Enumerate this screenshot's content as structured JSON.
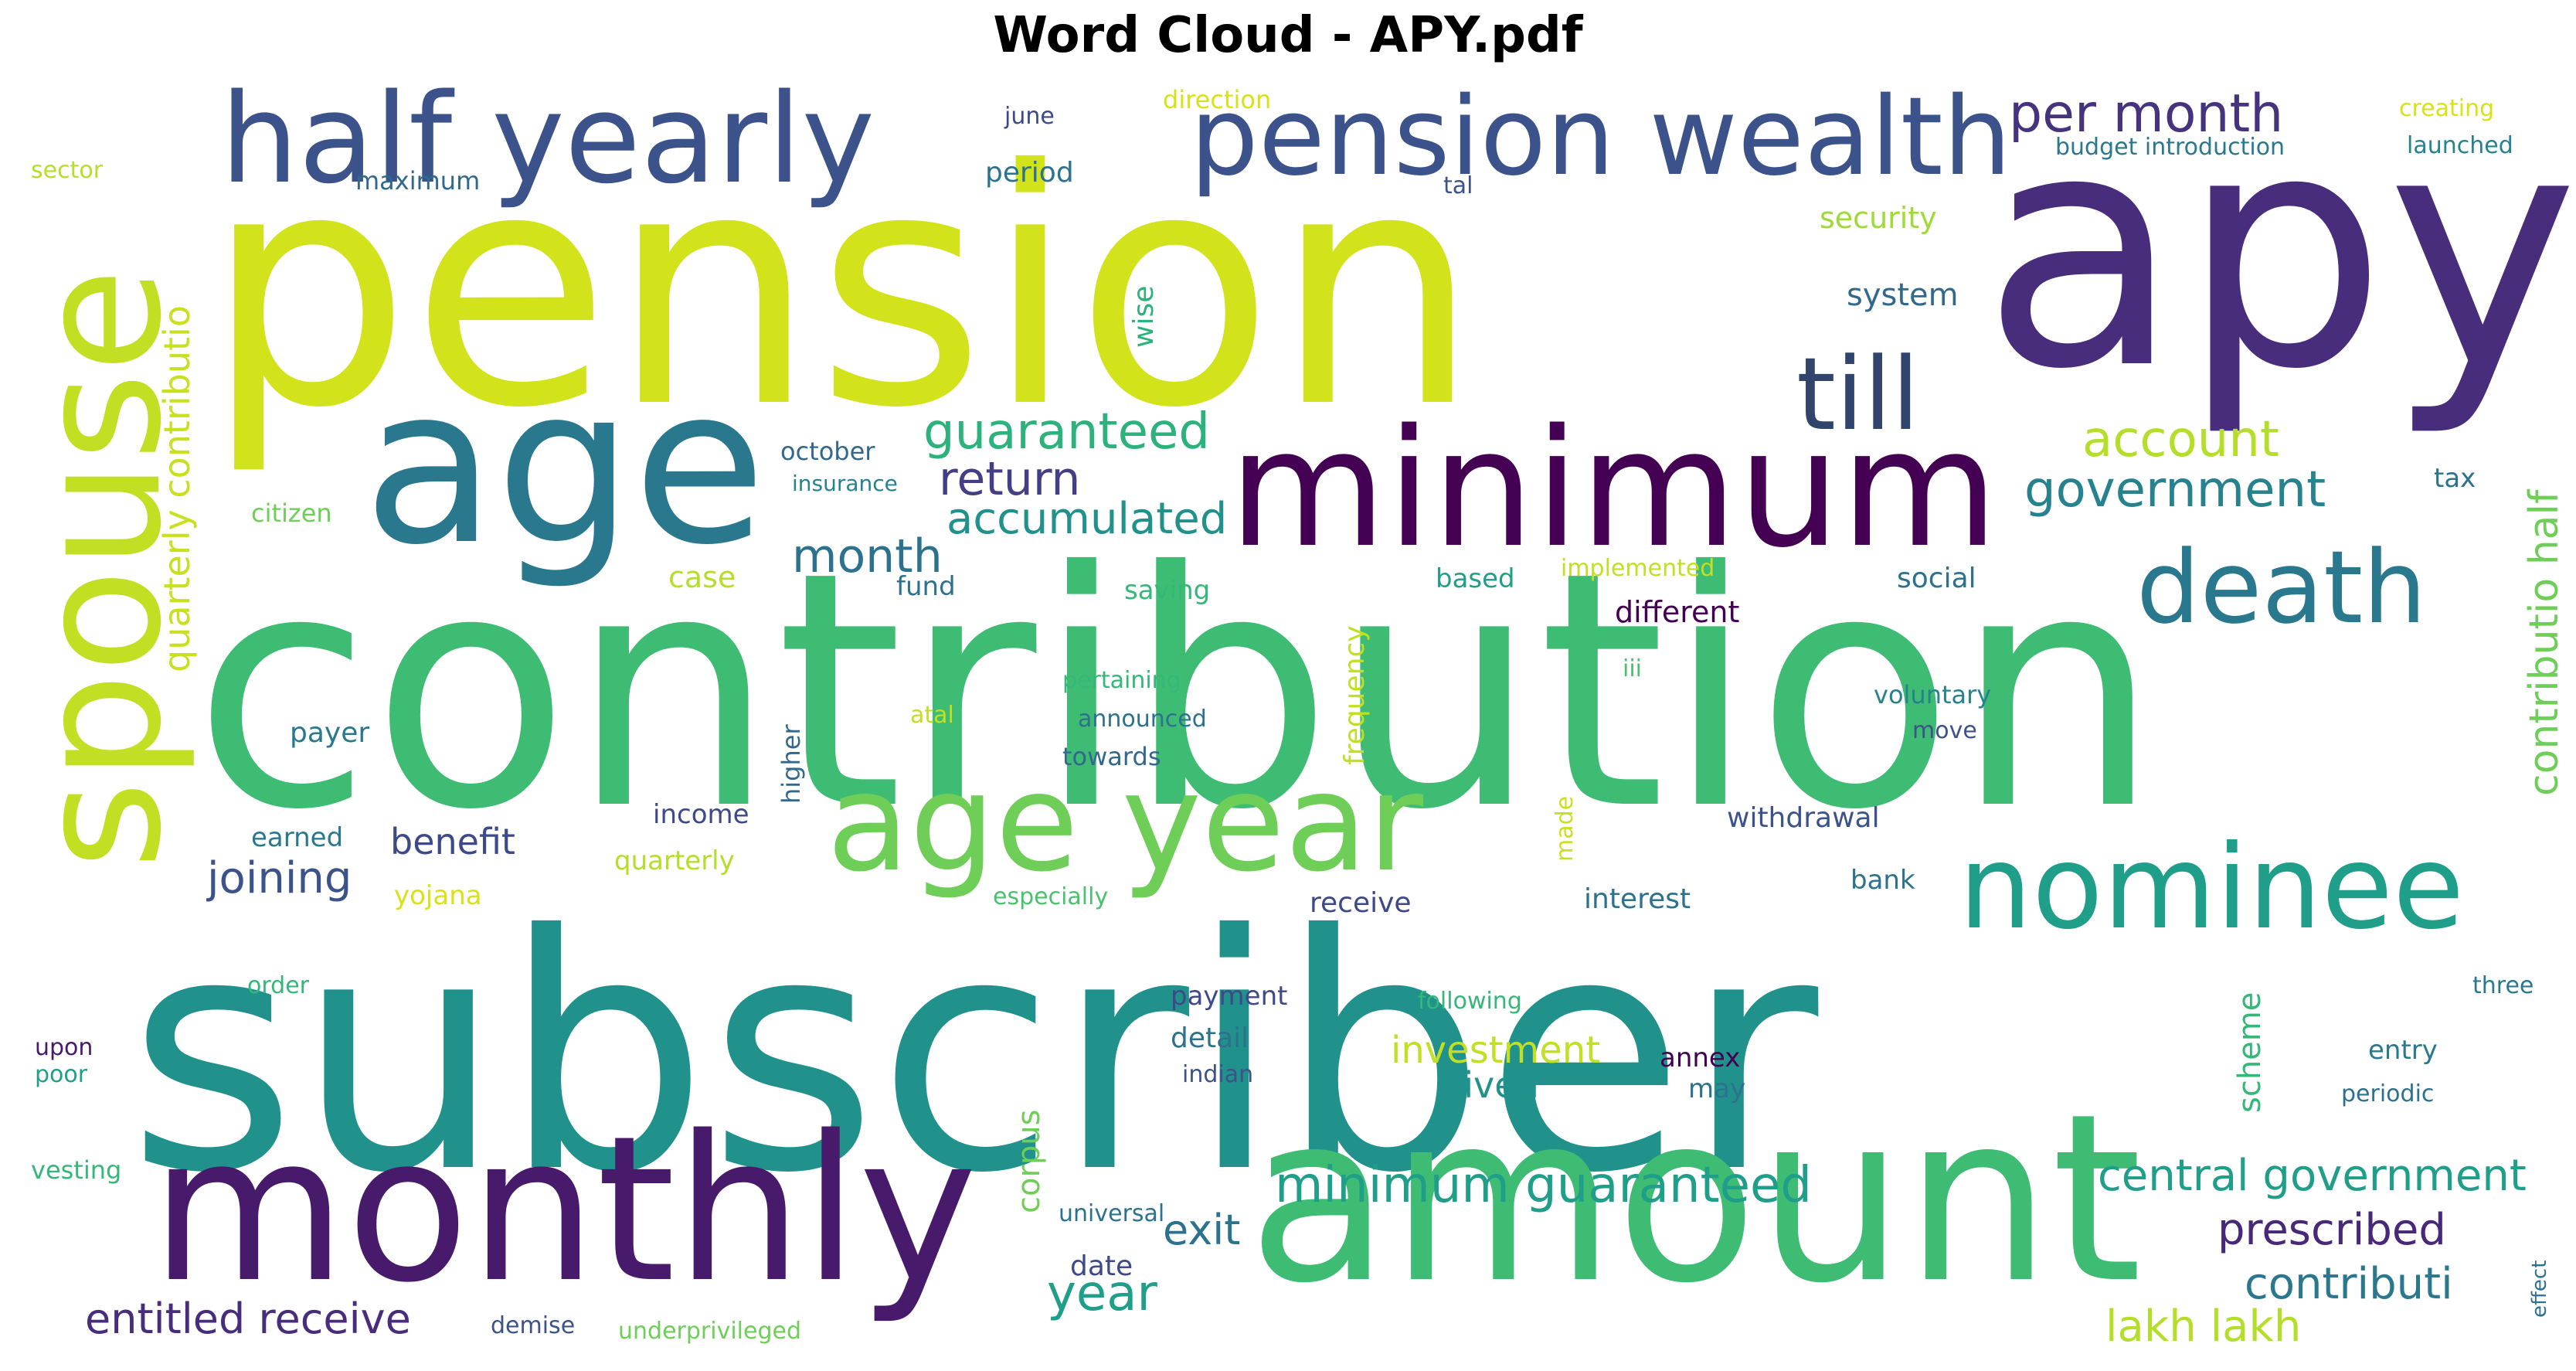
{
  "title": "Word Cloud - APY.pdf",
  "words": [
    {
      "text": "pension",
      "color": "#d2e21b"
    },
    {
      "text": "apy",
      "color": "#472d7b"
    },
    {
      "text": "contribution",
      "color": "#3fbc73"
    },
    {
      "text": "subscriber",
      "color": "#21918c"
    },
    {
      "text": "minimum",
      "color": "#440154"
    },
    {
      "text": "age",
      "color": "#2a788e"
    },
    {
      "text": "amount",
      "color": "#3fbc73"
    },
    {
      "text": "monthly",
      "color": "#481a6c"
    },
    {
      "text": "spouse",
      "color": "#c2df23"
    },
    {
      "text": "half yearly",
      "color": "#3b528b"
    },
    {
      "text": "pension wealth",
      "color": "#3b528b"
    },
    {
      "text": "age year",
      "color": "#6ece58"
    },
    {
      "text": "nominee",
      "color": "#1f9e89"
    },
    {
      "text": "death",
      "color": "#2a788e"
    },
    {
      "text": "till",
      "color": "#31446b"
    },
    {
      "text": "per month",
      "color": "#46337e"
    },
    {
      "text": "guaranteed",
      "color": "#2db27d"
    },
    {
      "text": "account",
      "color": "#b5de2b"
    },
    {
      "text": "government",
      "color": "#26828e"
    },
    {
      "text": "return",
      "color": "#433e85"
    },
    {
      "text": "accumulated",
      "color": "#21918c"
    },
    {
      "text": "month",
      "color": "#2c728e"
    },
    {
      "text": "quarterly contributio",
      "color": "#c8e020"
    },
    {
      "text": "contributio half",
      "color": "#6ece58"
    },
    {
      "text": "minimum guaranteed",
      "color": "#1f9e89"
    },
    {
      "text": "central government",
      "color": "#1f9e89"
    },
    {
      "text": "entitled receive",
      "color": "#472d7b"
    },
    {
      "text": "lakh lakh",
      "color": "#b5de2b"
    },
    {
      "text": "prescribed",
      "color": "#482878"
    },
    {
      "text": "contributi",
      "color": "#2a788e"
    },
    {
      "text": "year",
      "color": "#1f9e89"
    },
    {
      "text": "exit",
      "color": "#2c728e"
    },
    {
      "text": "joining",
      "color": "#3b528b"
    },
    {
      "text": "benefit",
      "color": "#3e4989"
    },
    {
      "text": "investment",
      "color": "#c2df23"
    },
    {
      "text": "given",
      "color": "#21918c"
    },
    {
      "text": "scheme",
      "color": "#35b779"
    },
    {
      "text": "corpus",
      "color": "#6ece58"
    },
    {
      "text": "wise",
      "color": "#2db27d"
    },
    {
      "text": "system",
      "color": "#31688e"
    },
    {
      "text": "security",
      "color": "#a0da39"
    },
    {
      "text": "sector",
      "color": "#b5de2b"
    },
    {
      "text": "maximum",
      "color": "#31688e"
    },
    {
      "text": "period",
      "color": "#2c728e"
    },
    {
      "text": "june",
      "color": "#3e4989"
    },
    {
      "text": "direction",
      "color": "#d8e219"
    },
    {
      "text": "creating",
      "color": "#d8e219"
    },
    {
      "text": "launched",
      "color": "#26828e"
    },
    {
      "text": "budget introduction",
      "color": "#2a788e"
    },
    {
      "text": "tal",
      "color": "#3b528b"
    },
    {
      "text": "october",
      "color": "#31688e"
    },
    {
      "text": "insurance",
      "color": "#26828e"
    },
    {
      "text": "citizen",
      "color": "#6ece58"
    },
    {
      "text": "case",
      "color": "#b5de2b"
    },
    {
      "text": "fund",
      "color": "#2c728e"
    },
    {
      "text": "saving",
      "color": "#35b779"
    },
    {
      "text": "based",
      "color": "#1f9e89"
    },
    {
      "text": "implemented",
      "color": "#c2df23"
    },
    {
      "text": "social",
      "color": "#2c728e"
    },
    {
      "text": "different",
      "color": "#440154"
    },
    {
      "text": "tax",
      "color": "#2c728e"
    },
    {
      "text": "frequency",
      "color": "#c2df23"
    },
    {
      "text": "pertaining",
      "color": "#35b779"
    },
    {
      "text": "iii",
      "color": "#4ac16d"
    },
    {
      "text": "voluntary",
      "color": "#26828e"
    },
    {
      "text": "move",
      "color": "#3b528b"
    },
    {
      "text": "payer",
      "color": "#2a788e"
    },
    {
      "text": "atal",
      "color": "#c2df23"
    },
    {
      "text": "announced",
      "color": "#2c728e"
    },
    {
      "text": "towards",
      "color": "#31688e"
    },
    {
      "text": "higher",
      "color": "#31688e"
    },
    {
      "text": "earned",
      "color": "#2a788e"
    },
    {
      "text": "income",
      "color": "#3e4989"
    },
    {
      "text": "made",
      "color": "#c8e020"
    },
    {
      "text": "withdrawal",
      "color": "#3b528b"
    },
    {
      "text": "quarterly",
      "color": "#b5de2b"
    },
    {
      "text": "yojana",
      "color": "#d8e219"
    },
    {
      "text": "especially",
      "color": "#4ac16d"
    },
    {
      "text": "receive",
      "color": "#3e4989"
    },
    {
      "text": "interest",
      "color": "#2c728e"
    },
    {
      "text": "bank",
      "color": "#2c728e"
    },
    {
      "text": "order",
      "color": "#35b779"
    },
    {
      "text": "payment",
      "color": "#3e4989"
    },
    {
      "text": "following",
      "color": "#35b779"
    },
    {
      "text": "three",
      "color": "#2a788e"
    },
    {
      "text": "upon",
      "color": "#481a6c"
    },
    {
      "text": "poor",
      "color": "#1f9e89"
    },
    {
      "text": "detail",
      "color": "#2c728e"
    },
    {
      "text": "indian",
      "color": "#3b528b"
    },
    {
      "text": "annex",
      "color": "#440154"
    },
    {
      "text": "may",
      "color": "#2c728e"
    },
    {
      "text": "entry",
      "color": "#2a788e"
    },
    {
      "text": "periodic",
      "color": "#2c728e"
    },
    {
      "text": "vesting",
      "color": "#35b779"
    },
    {
      "text": "universal",
      "color": "#2c728e"
    },
    {
      "text": "date",
      "color": "#3e4989"
    },
    {
      "text": "demise",
      "color": "#3b528b"
    },
    {
      "text": "underprivileged",
      "color": "#6ece58"
    },
    {
      "text": "effect",
      "color": "#2c728e"
    }
  ]
}
